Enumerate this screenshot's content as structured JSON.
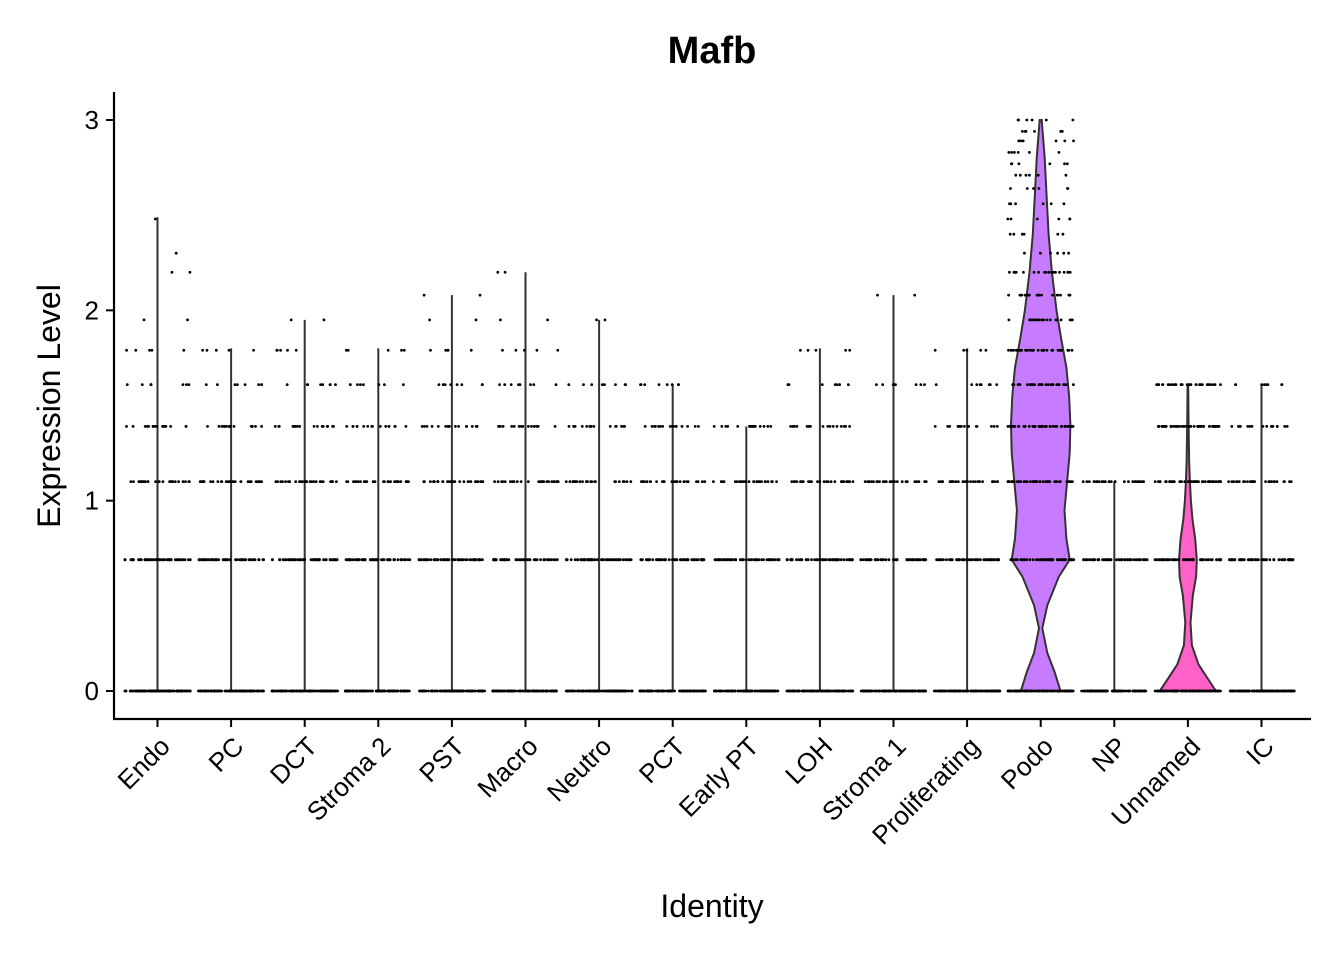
{
  "chart_data": {
    "type": "violin",
    "title": "Mafb",
    "xlabel": "Identity",
    "ylabel": "Expression Level",
    "ylim": [
      -0.15,
      3.15
    ],
    "yticks": [
      0,
      1,
      2,
      3
    ],
    "grid": false,
    "legend": "none",
    "categories": [
      "Endo",
      "PC",
      "DCT",
      "Stroma 2",
      "PST",
      "Macro",
      "Neutro",
      "PCT",
      "Early PT",
      "LOH",
      "Stroma 1",
      "Proliferating",
      "Podo",
      "NP",
      "Unnamed",
      "IC"
    ],
    "series": [
      {
        "category": "Endo",
        "max": 2.49,
        "levels": [
          0,
          0.69,
          1.1,
          1.39,
          1.61,
          1.79,
          1.95,
          2.2,
          2.3,
          2.48
        ]
      },
      {
        "category": "PC",
        "max": 1.8,
        "levels": [
          0,
          0.69,
          1.1,
          1.39,
          1.61,
          1.79
        ]
      },
      {
        "category": "DCT",
        "max": 1.95,
        "levels": [
          0,
          0.69,
          1.1,
          1.39,
          1.61,
          1.79,
          1.95
        ]
      },
      {
        "category": "Stroma 2",
        "max": 1.8,
        "levels": [
          0,
          0.69,
          1.1,
          1.39,
          1.61,
          1.79
        ]
      },
      {
        "category": "PST",
        "max": 2.08,
        "levels": [
          0,
          0.69,
          1.1,
          1.39,
          1.61,
          1.79,
          1.95,
          2.08
        ]
      },
      {
        "category": "Macro",
        "max": 2.2,
        "levels": [
          0,
          0.69,
          1.1,
          1.39,
          1.61,
          1.79,
          1.95,
          2.2
        ]
      },
      {
        "category": "Neutro",
        "max": 1.95,
        "levels": [
          0,
          0.69,
          1.1,
          1.39,
          1.61,
          1.95
        ]
      },
      {
        "category": "PCT",
        "max": 1.61,
        "levels": [
          0,
          0.69,
          1.1,
          1.39,
          1.61
        ]
      },
      {
        "category": "Early PT",
        "max": 1.39,
        "levels": [
          0,
          0.69,
          1.1,
          1.39
        ]
      },
      {
        "category": "LOH",
        "max": 1.8,
        "levels": [
          0,
          0.69,
          1.1,
          1.39,
          1.61,
          1.79
        ]
      },
      {
        "category": "Stroma 1",
        "max": 2.08,
        "levels": [
          0,
          0.69,
          1.1,
          1.61,
          2.08
        ]
      },
      {
        "category": "Proliferating",
        "max": 1.8,
        "levels": [
          0,
          0.69,
          1.1,
          1.39,
          1.61,
          1.79
        ]
      },
      {
        "category": "Podo",
        "max": 3.0,
        "levels": [
          0,
          0.69,
          1.1,
          1.39,
          1.61,
          1.79,
          1.95,
          2.08,
          2.2,
          2.3,
          2.4,
          2.48,
          2.56,
          2.64,
          2.71,
          2.77,
          2.83,
          2.89,
          2.94,
          3.0
        ],
        "density": [
          [
            0,
            0.6
          ],
          [
            0.1,
            0.42
          ],
          [
            0.2,
            0.2
          ],
          [
            0.33,
            0.05
          ],
          [
            0.45,
            0.2
          ],
          [
            0.6,
            0.55
          ],
          [
            0.69,
            0.88
          ],
          [
            0.8,
            0.78
          ],
          [
            0.95,
            0.72
          ],
          [
            1.1,
            0.8
          ],
          [
            1.25,
            0.88
          ],
          [
            1.4,
            0.9
          ],
          [
            1.55,
            0.86
          ],
          [
            1.7,
            0.78
          ],
          [
            1.85,
            0.62
          ],
          [
            2.0,
            0.48
          ],
          [
            2.2,
            0.34
          ],
          [
            2.4,
            0.24
          ],
          [
            2.6,
            0.18
          ],
          [
            2.8,
            0.12
          ],
          [
            3.0,
            0.03
          ]
        ]
      },
      {
        "category": "NP",
        "max": 1.1,
        "levels": [
          0,
          0.69,
          1.1
        ]
      },
      {
        "category": "Unnamed",
        "max": 1.61,
        "levels": [
          0,
          0.69,
          1.1,
          1.39,
          1.61
        ],
        "density": [
          [
            0,
            0.85
          ],
          [
            0.06,
            0.62
          ],
          [
            0.14,
            0.32
          ],
          [
            0.24,
            0.12
          ],
          [
            0.36,
            0.08
          ],
          [
            0.5,
            0.15
          ],
          [
            0.6,
            0.25
          ],
          [
            0.69,
            0.27
          ],
          [
            0.8,
            0.22
          ],
          [
            0.9,
            0.14
          ],
          [
            1.0,
            0.09
          ],
          [
            1.1,
            0.06
          ],
          [
            1.2,
            0.04
          ],
          [
            1.4,
            0.02
          ],
          [
            1.61,
            0.01
          ]
        ]
      },
      {
        "category": "IC",
        "max": 1.61,
        "levels": [
          0,
          0.69,
          1.1,
          1.39,
          1.61
        ]
      }
    ],
    "colors": {
      "Podo": "#c77cff",
      "Unnamed": "#ff61c9",
      "outline": "#333333",
      "points": "#000000"
    }
  }
}
